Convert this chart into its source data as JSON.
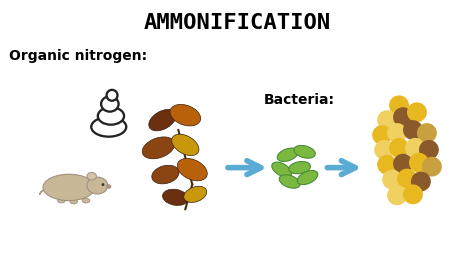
{
  "title": "AMMONIFICATION",
  "title_fontsize": 16,
  "title_fontweight": "bold",
  "title_family": "monospace",
  "subtitle": "Organic nitrogen:",
  "subtitle_fontsize": 10,
  "subtitle_fontweight": "bold",
  "bacteria_label": "Bacteria:",
  "bg_color": "#ffffff",
  "arrow_color": "#5bacd4",
  "dot_yellow1": "#e8b820",
  "dot_yellow2": "#f0d060",
  "dot_brown": "#8B5A2B",
  "dot_tan": "#c8a040",
  "leaf_dark_brown": "#6B3010",
  "leaf_medium_brown": "#8B4513",
  "leaf_orange_brown": "#B8600A",
  "leaf_yellow_brown": "#C8980A",
  "leaf_tan": "#9B7030",
  "stem_color": "#4A3010",
  "bacteria_green_dark": "#4a8c3a",
  "bacteria_green_light": "#7ab840",
  "mouse_body": "#c8b898",
  "mouse_dark": "#a09080",
  "poop_color": "#ffffff",
  "poop_outline": "#222222",
  "figsize": [
    4.74,
    2.66
  ],
  "dpi": 100
}
